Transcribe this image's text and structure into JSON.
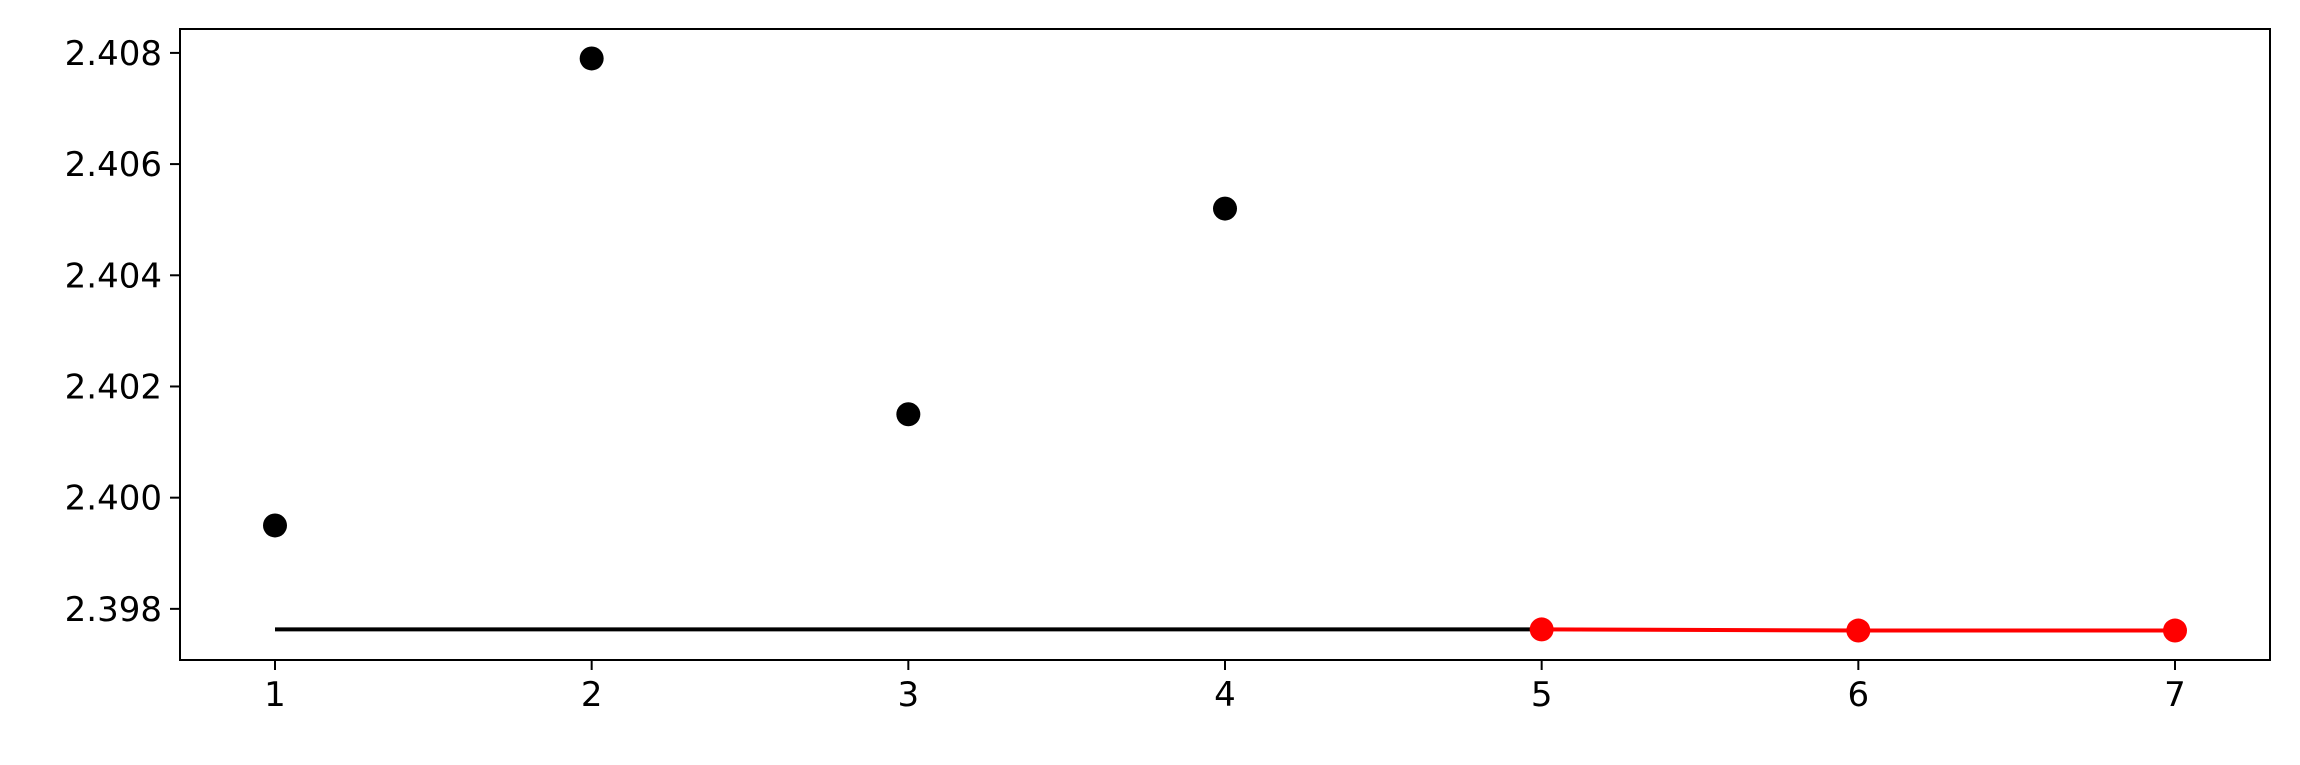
{
  "chart_data": {
    "type": "line",
    "title": "",
    "xlabel": "",
    "ylabel": "",
    "xlim": [
      0.7,
      7.3
    ],
    "ylim": [
      2.39708,
      2.40843
    ],
    "x_ticks": [
      1,
      2,
      3,
      4,
      5,
      6,
      7
    ],
    "y_ticks": [
      2.398,
      2.4,
      2.402,
      2.404,
      2.406,
      2.408
    ],
    "y_tick_labels": [
      "2.398",
      "2.400",
      "2.402",
      "2.404",
      "2.406",
      "2.408"
    ],
    "grid": false,
    "legend": null,
    "series": [
      {
        "kind": "scatter",
        "color": "#000000",
        "x": [
          1,
          2,
          3,
          4
        ],
        "y": [
          2.3995,
          2.4079,
          2.4015,
          2.4052
        ]
      },
      {
        "kind": "line",
        "color": "#000000",
        "x": [
          1,
          5
        ],
        "y": [
          2.39763,
          2.39763
        ]
      },
      {
        "kind": "line-markers",
        "color": "#ff0000",
        "x": [
          5,
          6,
          7
        ],
        "y": [
          2.39763,
          2.39761,
          2.39761
        ]
      }
    ]
  }
}
